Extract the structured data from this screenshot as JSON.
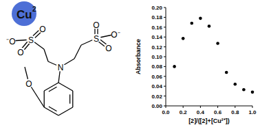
{
  "chart_data": {
    "type": "scatter",
    "x_label": "[2]/([2]+[Cu²⁺])",
    "y_label": "Absorbance",
    "x": [
      0.1,
      0.2,
      0.3,
      0.4,
      0.5,
      0.6,
      0.7,
      0.8,
      0.9,
      1.0
    ],
    "values": [
      0.08,
      0.137,
      0.168,
      0.178,
      0.162,
      0.127,
      0.068,
      0.044,
      0.033,
      0.028
    ],
    "color": "#000000",
    "marker": "circle",
    "xlim": [
      0,
      1
    ],
    "ylim": [
      0,
      0.2
    ],
    "xticks": [
      {
        "value": 0,
        "label": "0.0"
      },
      {
        "value": 0.2,
        "label": "0.2"
      },
      {
        "value": 0.4,
        "label": "0.4"
      },
      {
        "value": 0.6,
        "label": "0.6"
      },
      {
        "value": 0.8,
        "label": "0.8"
      },
      {
        "value": 1,
        "label": "1.0"
      }
    ],
    "yticks": [
      {
        "value": 0,
        "label": "0.00"
      },
      {
        "value": 0.02,
        "label": "0.02"
      },
      {
        "value": 0.04,
        "label": "0.04"
      },
      {
        "value": 0.06,
        "label": "0.06"
      },
      {
        "value": 0.08,
        "label": "0.08"
      },
      {
        "value": 0.1,
        "label": "0.10"
      },
      {
        "value": 0.12,
        "label": "0.12"
      },
      {
        "value": 0.14,
        "label": "0.14"
      },
      {
        "value": 0.16,
        "label": "0.16"
      },
      {
        "value": 0.18,
        "label": "0.18"
      },
      {
        "value": 0.2,
        "label": "0.20"
      }
    ]
  },
  "structure": {
    "metal": "Cu",
    "metal_charge": "2",
    "atoms": [
      "⁻O",
      "S",
      "O",
      "O",
      "N",
      "S",
      "O",
      "O",
      "O⁻",
      "O"
    ]
  }
}
